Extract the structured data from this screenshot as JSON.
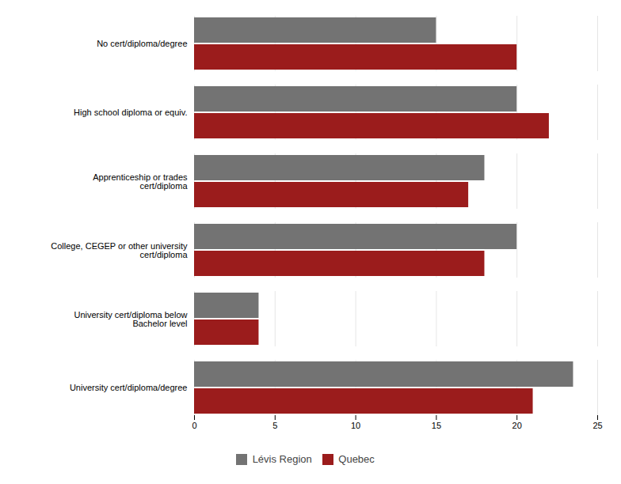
{
  "chart_data": {
    "type": "bar",
    "orientation": "horizontal",
    "categories": [
      "No cert/diploma/degree",
      "High school diploma or equiv.",
      "Apprenticeship or trades\ncert/diploma",
      "College, CEGEP or other university\ncert/diploma",
      "University cert/diploma below\nBachelor level",
      "University cert/diploma/degree"
    ],
    "series": [
      {
        "name": "Lévis Region",
        "color": "#737373",
        "values": [
          15,
          20,
          18,
          20,
          4,
          23.5
        ]
      },
      {
        "name": "Quebec",
        "color": "#9B1C1C",
        "values": [
          20,
          22,
          17,
          18,
          4,
          21
        ]
      }
    ],
    "xlim": [
      0,
      25
    ],
    "xticks": [
      0,
      5,
      10,
      15,
      20,
      25
    ],
    "grid": true,
    "legend": "bottom"
  }
}
